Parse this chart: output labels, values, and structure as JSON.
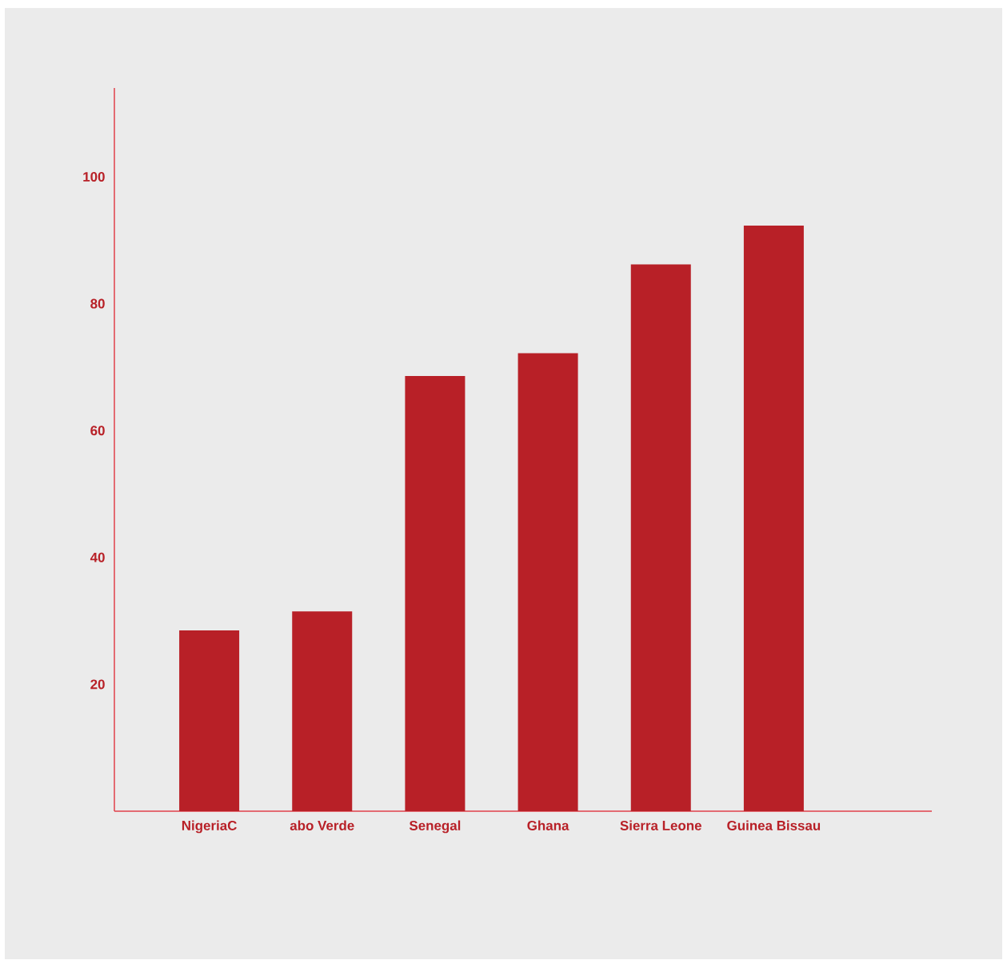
{
  "chart_data": {
    "type": "bar",
    "categories": [
      "NigeriaC",
      "abo Verde",
      "Senegal",
      "Ghana",
      "Sierra Leone",
      "Guinea Bissau"
    ],
    "values": [
      28.5,
      31.5,
      68.6,
      72.2,
      86.2,
      92.3
    ],
    "color": "#b82027",
    "ylim": [
      0,
      114
    ],
    "yticks": [
      20,
      40,
      60,
      80,
      100
    ],
    "grid": false
  }
}
